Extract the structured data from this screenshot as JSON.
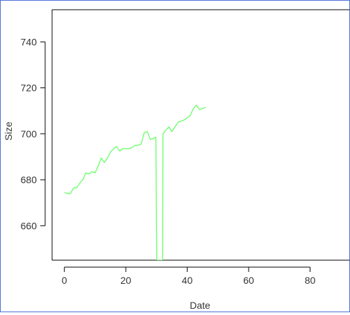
{
  "chart_data": {
    "type": "line",
    "title": "",
    "xlabel": "Date",
    "ylabel": "Size",
    "xlim": [
      -4,
      93
    ],
    "ylim": [
      645,
      754
    ],
    "x_ticks": [
      0,
      20,
      40,
      60,
      80
    ],
    "y_ticks": [
      660,
      680,
      700,
      720,
      740
    ],
    "grid": false,
    "legend": "none",
    "series": [
      {
        "color": "#66ff66",
        "x": [
          0,
          1,
          2,
          3,
          4,
          5,
          6,
          7,
          8,
          9,
          10,
          11,
          12,
          13,
          14,
          15,
          16,
          17,
          18,
          19,
          20,
          21,
          22,
          23,
          24,
          25,
          26,
          27,
          28,
          29,
          29.8,
          30,
          30.1,
          31,
          32,
          32.1,
          33,
          34,
          35,
          36,
          37,
          38,
          39,
          40,
          41,
          42,
          43,
          44,
          45,
          46
        ],
        "y": [
          674.5,
          674,
          674,
          676.5,
          676.5,
          678.5,
          680,
          683,
          682.5,
          683.5,
          683,
          686,
          689.5,
          687.5,
          689.5,
          692,
          693.5,
          694.5,
          692.5,
          693.5,
          693.5,
          693.5,
          694,
          695,
          695,
          695.5,
          700.5,
          701,
          697.5,
          698,
          698.5,
          659,
          645,
          645,
          645,
          700,
          701.5,
          703,
          701,
          703,
          705,
          705.5,
          706,
          707,
          708,
          711,
          712.5,
          710.5,
          711,
          711.5
        ]
      }
    ]
  }
}
